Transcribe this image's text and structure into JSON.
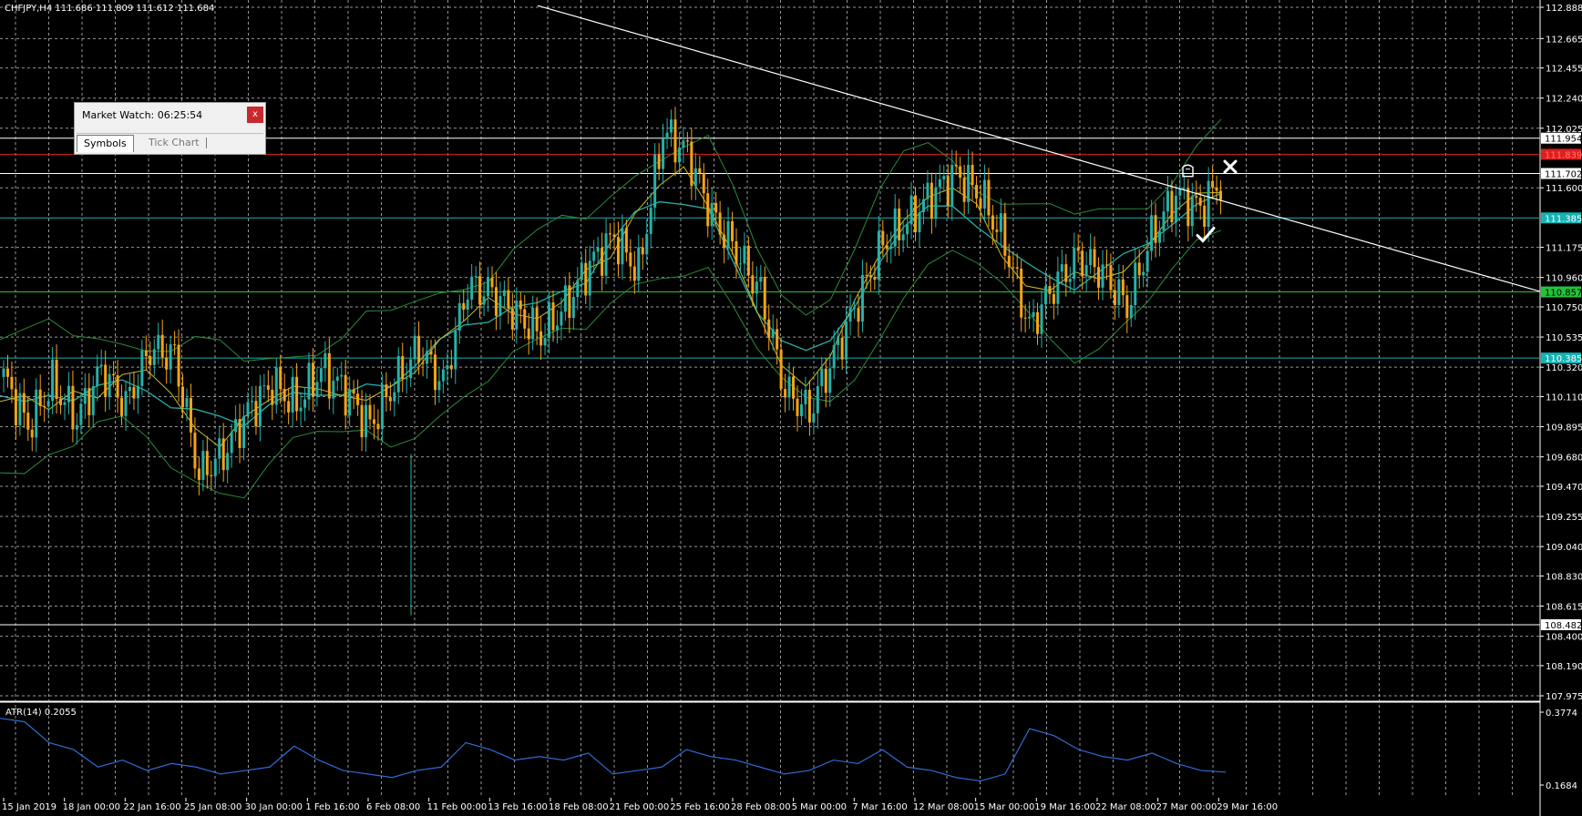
{
  "header": {
    "symbol": "CHFJPY,H4  111.686 111.809 111.612 111.684"
  },
  "market_watch": {
    "title": "Market Watch: 06:25:54",
    "close_label": "x",
    "tabs": [
      {
        "label": "Symbols",
        "active": true
      },
      {
        "label": "Tick Chart",
        "active": false
      }
    ]
  },
  "indicator": {
    "label": "ATR(14) 0.2055"
  },
  "colors": {
    "background": "#000000",
    "grid": "#c8c8c8",
    "bull_candle": "#26b0a8",
    "bear_candle": "#f5a316",
    "ma": "#26b0a8",
    "bands": "#2a8a3a",
    "trendline": "#ffffff",
    "atr": "#2f6bd4",
    "hline_red": "#e01e1e",
    "hline_cyan": "#15b3b3",
    "hline_green": "#22c43a",
    "hline_white": "#ffffff"
  },
  "icons": {
    "cross": "close-x-mark",
    "check": "check-mark",
    "hand": "pointing-hand-icon"
  },
  "chart_data": {
    "type": "candlestick",
    "symbol": "CHFJPY",
    "timeframe": "H4",
    "ohlc_last": {
      "open": 111.686,
      "high": 111.809,
      "low": 111.612,
      "close": 111.684
    },
    "ylim": [
      107.975,
      112.888
    ],
    "y_ticks": [
      "112.888",
      "112.665",
      "112.455",
      "112.240",
      "112.025",
      "111.600",
      "111.175",
      "110.960",
      "110.750",
      "110.535",
      "110.320",
      "110.110",
      "109.895",
      "109.680",
      "109.470",
      "109.255",
      "109.040",
      "108.830",
      "108.615",
      "108.400",
      "108.190",
      "107.975"
    ],
    "x_ticks": [
      "15 Jan 2019",
      "18 Jan 00:00",
      "22 Jan 16:00",
      "25 Jan 08:00",
      "30 Jan 00:00",
      "1 Feb 16:00",
      "6 Feb 08:00",
      "11 Feb 00:00",
      "13 Feb 16:00",
      "18 Feb 08:00",
      "21 Feb 00:00",
      "25 Feb 16:00",
      "28 Feb 08:00",
      "5 Mar 00:00",
      "7 Mar 16:00",
      "12 Mar 08:00",
      "15 Mar 00:00",
      "19 Mar 16:00",
      "22 Mar 08:00",
      "27 Mar 00:00",
      "29 Mar 16:00"
    ],
    "price_levels": [
      {
        "price": 111.954,
        "label": "111.954",
        "color": "#ffffff",
        "label_bg": "#ffffff",
        "label_fg": "#000000"
      },
      {
        "price": 111.839,
        "label": "111.839",
        "color": "#e01e1e",
        "label_bg": "#e01e1e",
        "label_fg": "#ff7777"
      },
      {
        "price": 111.702,
        "label": "111.702",
        "color": "#ffffff",
        "label_bg": "#ffffff",
        "label_fg": "#000000"
      },
      {
        "price": 111.385,
        "label": "111.385",
        "color": "#15b3b3",
        "label_bg": "#15b3b3",
        "label_fg": "#ffffff"
      },
      {
        "price": 110.857,
        "label": "110.857",
        "color": "#22c43a",
        "label_bg": "#22c43a",
        "label_fg": "#000000"
      },
      {
        "price": 110.385,
        "label": "110.385",
        "color": "#15b3b3",
        "label_bg": "#15b3b3",
        "label_fg": "#ffffff"
      },
      {
        "price": 108.482,
        "label": "108.482",
        "color": "#ffffff",
        "label_bg": "#ffffff",
        "label_fg": "#000000"
      }
    ],
    "close_path": [
      [
        0,
        110.25
      ],
      [
        6,
        109.9
      ],
      [
        12,
        110.2
      ],
      [
        18,
        109.95
      ],
      [
        24,
        110.3
      ],
      [
        30,
        110.05
      ],
      [
        36,
        110.45
      ],
      [
        42,
        110.4
      ],
      [
        48,
        109.55
      ],
      [
        54,
        109.7
      ],
      [
        60,
        110.0
      ],
      [
        66,
        110.2
      ],
      [
        72,
        110.05
      ],
      [
        78,
        110.3
      ],
      [
        84,
        110.15
      ],
      [
        90,
        109.9
      ],
      [
        96,
        110.2
      ],
      [
        102,
        110.45
      ],
      [
        108,
        110.2
      ],
      [
        114,
        110.9
      ],
      [
        120,
        110.85
      ],
      [
        126,
        110.7
      ],
      [
        132,
        110.55
      ],
      [
        138,
        110.75
      ],
      [
        144,
        111.05
      ],
      [
        150,
        111.25
      ],
      [
        156,
        111.0
      ],
      [
        162,
        112.0
      ],
      [
        168,
        111.85
      ],
      [
        174,
        111.4
      ],
      [
        180,
        111.15
      ],
      [
        186,
        110.85
      ],
      [
        192,
        110.15
      ],
      [
        198,
        110.0
      ],
      [
        204,
        110.4
      ],
      [
        210,
        110.8
      ],
      [
        216,
        111.2
      ],
      [
        222,
        111.35
      ],
      [
        228,
        111.55
      ],
      [
        234,
        111.7
      ],
      [
        240,
        111.55
      ],
      [
        246,
        111.2
      ],
      [
        252,
        110.6
      ],
      [
        258,
        110.9
      ],
      [
        264,
        111.1
      ],
      [
        270,
        111.0
      ],
      [
        276,
        110.75
      ],
      [
        282,
        111.25
      ],
      [
        288,
        111.55
      ],
      [
        294,
        111.45
      ],
      [
        300,
        111.684
      ]
    ],
    "trendline": {
      "from": [
        0,
        112.9
      ],
      "to": [
        420,
        110.86
      ]
    },
    "atr": {
      "label": "ATR(14)",
      "value": 0.2055,
      "ylim": [
        0.1684,
        0.3774
      ],
      "y_ticks": [
        "0.3774",
        "0.1684"
      ],
      "values": [
        0.36,
        0.35,
        0.29,
        0.27,
        0.22,
        0.24,
        0.21,
        0.23,
        0.22,
        0.2,
        0.21,
        0.22,
        0.28,
        0.24,
        0.21,
        0.2,
        0.19,
        0.21,
        0.22,
        0.29,
        0.27,
        0.24,
        0.25,
        0.24,
        0.26,
        0.2,
        0.21,
        0.22,
        0.27,
        0.25,
        0.24,
        0.22,
        0.2,
        0.21,
        0.24,
        0.23,
        0.27,
        0.22,
        0.21,
        0.19,
        0.18,
        0.2,
        0.33,
        0.31,
        0.27,
        0.25,
        0.24,
        0.26,
        0.23,
        0.21,
        0.2055
      ]
    }
  }
}
